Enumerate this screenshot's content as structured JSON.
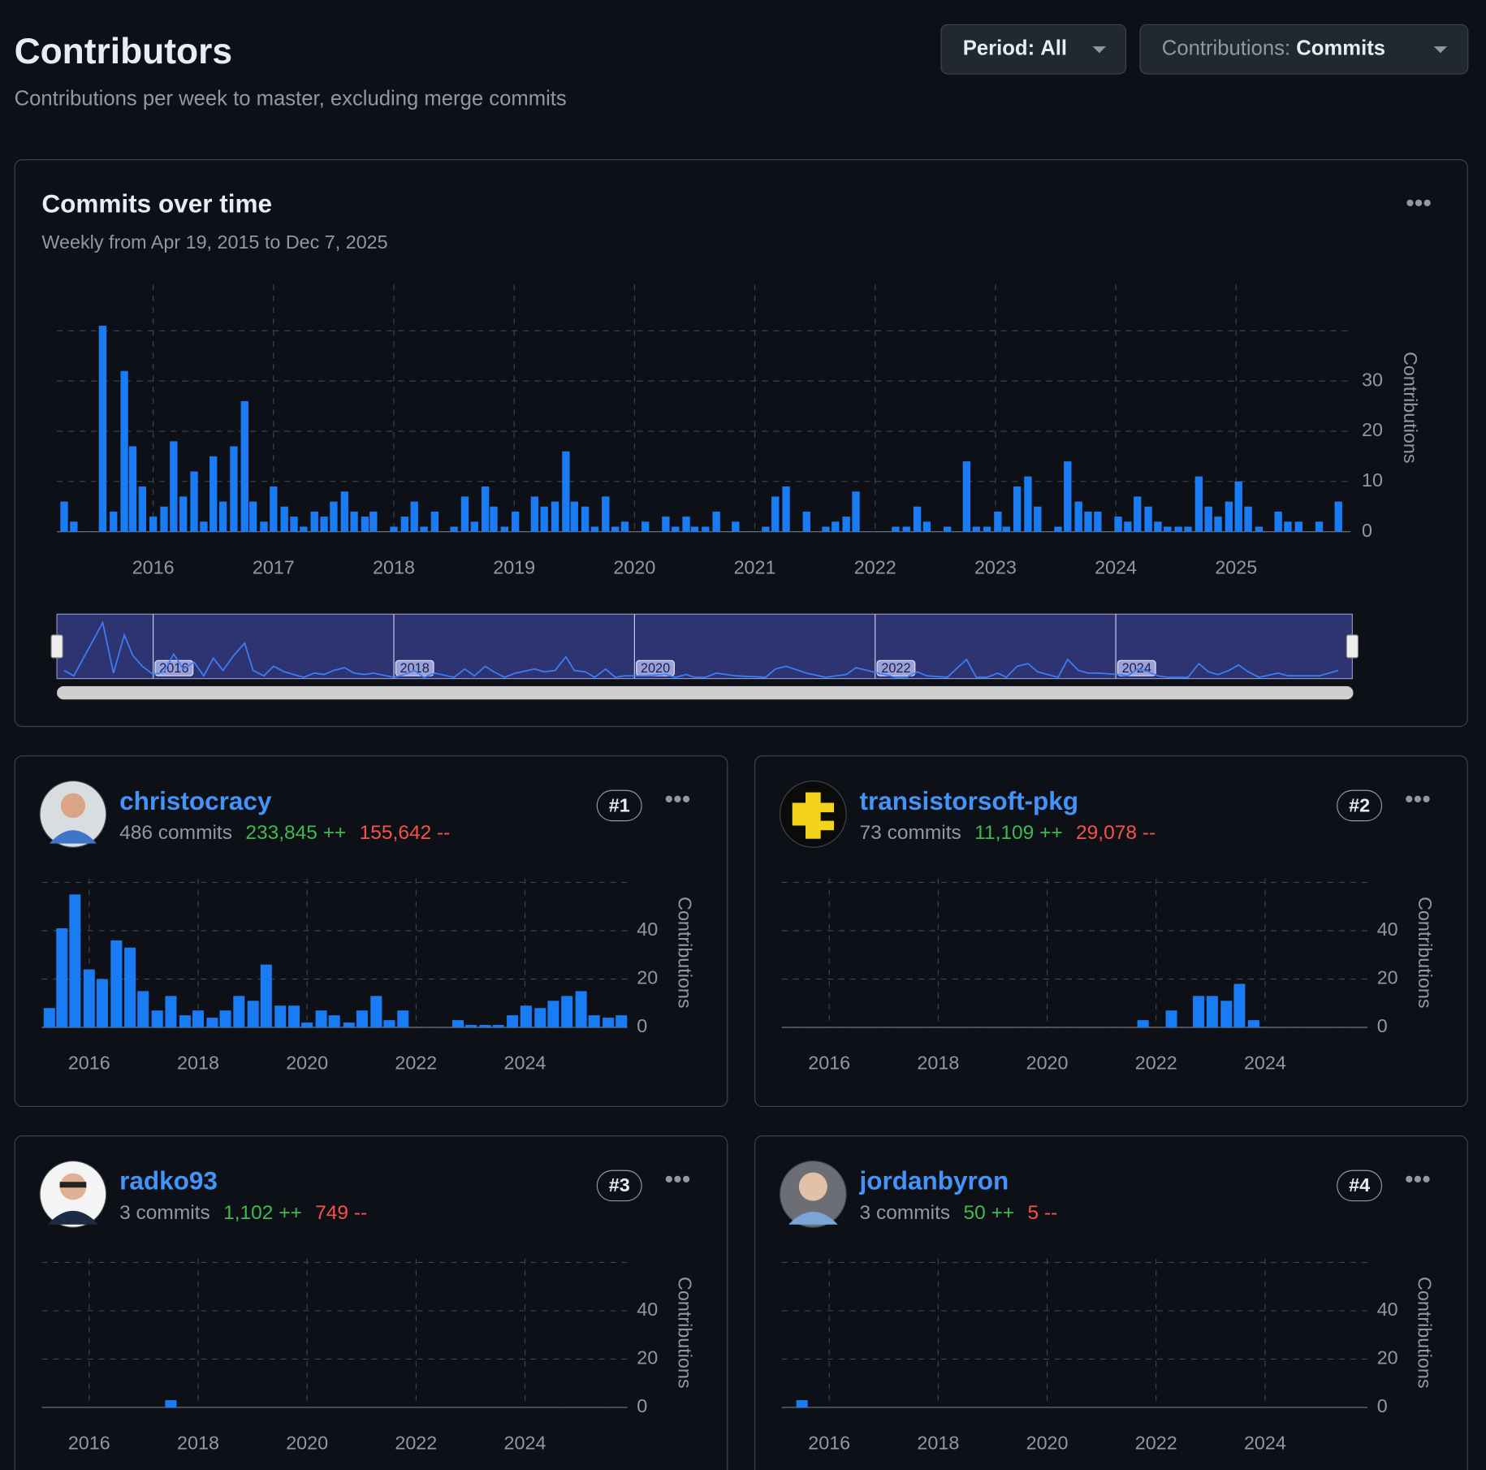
{
  "header": {
    "title": "Contributors",
    "subtitle": "Contributions per week to master, excluding merge commits"
  },
  "filters": [
    {
      "label": "Period:",
      "value": "All"
    },
    {
      "label": "Contributions:",
      "value": "Commits"
    }
  ],
  "commits_chart": {
    "type": "bar",
    "title": "Commits over time",
    "subtitle": "Weekly from Apr 19, 2015 to Dec 7, 2025",
    "y_label": "Contributions",
    "color": "#1a7cf5",
    "x": [
      2015.26,
      2015.34,
      2015.58,
      2015.67,
      2015.76,
      2015.83,
      2015.91,
      2016.0,
      2016.09,
      2016.17,
      2016.25,
      2016.34,
      2016.42,
      2016.5,
      2016.58,
      2016.67,
      2016.76,
      2016.83,
      2016.92,
      2017.0,
      2017.09,
      2017.17,
      2017.25,
      2017.34,
      2017.42,
      2017.5,
      2017.59,
      2017.67,
      2017.76,
      2017.83,
      2018.0,
      2018.09,
      2018.17,
      2018.25,
      2018.34,
      2018.5,
      2018.59,
      2018.67,
      2018.76,
      2018.83,
      2018.92,
      2019.01,
      2019.17,
      2019.25,
      2019.34,
      2019.43,
      2019.5,
      2019.59,
      2019.67,
      2019.76,
      2019.84,
      2019.92,
      2020.09,
      2020.26,
      2020.34,
      2020.43,
      2020.5,
      2020.59,
      2020.68,
      2020.84,
      2021.09,
      2021.17,
      2021.26,
      2021.43,
      2021.59,
      2021.67,
      2021.76,
      2021.84,
      2022.17,
      2022.26,
      2022.35,
      2022.43,
      2022.6,
      2022.76,
      2022.84,
      2022.93,
      2023.02,
      2023.09,
      2023.18,
      2023.27,
      2023.35,
      2023.52,
      2023.6,
      2023.69,
      2023.77,
      2023.85,
      2024.02,
      2024.1,
      2024.18,
      2024.27,
      2024.35,
      2024.43,
      2024.52,
      2024.6,
      2024.69,
      2024.77,
      2024.85,
      2024.94,
      2025.02,
      2025.1,
      2025.19,
      2025.35,
      2025.43,
      2025.52,
      2025.69,
      2025.85
    ],
    "values": [
      6,
      2,
      41,
      4,
      32,
      17,
      9,
      3,
      5,
      18,
      7,
      12,
      2,
      15,
      6,
      17,
      26,
      6,
      2,
      9,
      5,
      3,
      1,
      4,
      3,
      6,
      8,
      4,
      3,
      4,
      1,
      3,
      6,
      1,
      4,
      1,
      7,
      2,
      9,
      5,
      1,
      4,
      7,
      5,
      6,
      16,
      6,
      5,
      1,
      7,
      1,
      2,
      2,
      3,
      1,
      3,
      1,
      1,
      4,
      2,
      1,
      7,
      9,
      4,
      1,
      2,
      3,
      8,
      1,
      1,
      5,
      2,
      1,
      14,
      1,
      1,
      4,
      1,
      9,
      11,
      5,
      1,
      14,
      6,
      4,
      4,
      3,
      2,
      7,
      5,
      2,
      1,
      1,
      1,
      11,
      5,
      3,
      6,
      10,
      5,
      1,
      4,
      2,
      2,
      2,
      6
    ],
    "xlim": [
      2015.2,
      2025.95
    ],
    "ylim": [
      0,
      40
    ],
    "xticks": [
      2016,
      2017,
      2018,
      2019,
      2020,
      2021,
      2022,
      2023,
      2024,
      2025
    ],
    "yticks": [
      0,
      10,
      20,
      30
    ],
    "navigator_ticks": [
      2016,
      2018,
      2020,
      2022,
      2024
    ],
    "grid": true
  },
  "contributors": [
    {
      "rank": "#1",
      "name": "christocracy",
      "commits": "486 commits",
      "additions": "233,845 ++",
      "deletions": "155,642 --",
      "chart": {
        "type": "bar",
        "y_label": "Contributions",
        "color": "#1a7cf5",
        "x": [
          2015.27,
          2015.5,
          2015.74,
          2016.0,
          2016.24,
          2016.5,
          2016.75,
          2016.99,
          2017.25,
          2017.5,
          2017.76,
          2018.0,
          2018.26,
          2018.5,
          2018.75,
          2019.01,
          2019.25,
          2019.51,
          2019.76,
          2020.0,
          2020.26,
          2020.5,
          2020.77,
          2021.01,
          2021.27,
          2021.51,
          2021.76,
          2022.77,
          2023.01,
          2023.27,
          2023.51,
          2023.77,
          2024.02,
          2024.28,
          2024.52,
          2024.77,
          2025.03,
          2025.27,
          2025.53,
          2025.77
        ],
        "values": [
          8,
          41,
          55,
          24,
          20,
          36,
          33,
          15,
          7,
          13,
          5,
          7,
          4,
          7,
          13,
          11,
          26,
          9,
          9,
          2,
          7,
          5,
          2,
          7,
          13,
          3,
          7,
          3,
          1,
          1,
          1,
          5,
          9,
          8,
          11,
          13,
          15,
          5,
          4,
          5
        ],
        "xlim": [
          2015.13,
          2025.88
        ],
        "ylim": [
          0,
          60
        ],
        "xticks": [
          2016,
          2018,
          2020,
          2022,
          2024
        ],
        "yticks": [
          0,
          20,
          40
        ]
      }
    },
    {
      "rank": "#2",
      "name": "transistorsoft-pkg",
      "commits": "73 commits",
      "additions": "11,109 ++",
      "deletions": "29,078 --",
      "chart": {
        "type": "bar",
        "y_label": "Contributions",
        "color": "#1a7cf5",
        "x": [
          2021.76,
          2022.28,
          2022.78,
          2023.03,
          2023.29,
          2023.53,
          2023.79
        ],
        "values": [
          3,
          7,
          13,
          13,
          11,
          18,
          3
        ],
        "xlim": [
          2015.13,
          2025.88
        ],
        "ylim": [
          0,
          60
        ],
        "xticks": [
          2016,
          2018,
          2020,
          2022,
          2024
        ],
        "yticks": [
          0,
          20,
          40
        ]
      }
    },
    {
      "rank": "#3",
      "name": "radko93",
      "commits": "3 commits",
      "additions": "1,102 ++",
      "deletions": "749 --",
      "chart": {
        "type": "bar",
        "y_label": "Contributions",
        "color": "#1a7cf5",
        "x": [
          2017.5
        ],
        "values": [
          3
        ],
        "xlim": [
          2015.13,
          2025.88
        ],
        "ylim": [
          0,
          60
        ],
        "xticks": [
          2016,
          2018,
          2020,
          2022,
          2024
        ],
        "yticks": [
          0,
          20,
          40
        ]
      }
    },
    {
      "rank": "#4",
      "name": "jordanbyron",
      "commits": "3 commits",
      "additions": "50 ++",
      "deletions": "5 --",
      "chart": {
        "type": "bar",
        "y_label": "Contributions",
        "color": "#1a7cf5",
        "x": [
          2015.5
        ],
        "values": [
          3
        ],
        "xlim": [
          2015.13,
          2025.88
        ],
        "ylim": [
          0,
          60
        ],
        "xticks": [
          2016,
          2018,
          2020,
          2022,
          2024
        ],
        "yticks": [
          0,
          20,
          40
        ]
      }
    }
  ]
}
